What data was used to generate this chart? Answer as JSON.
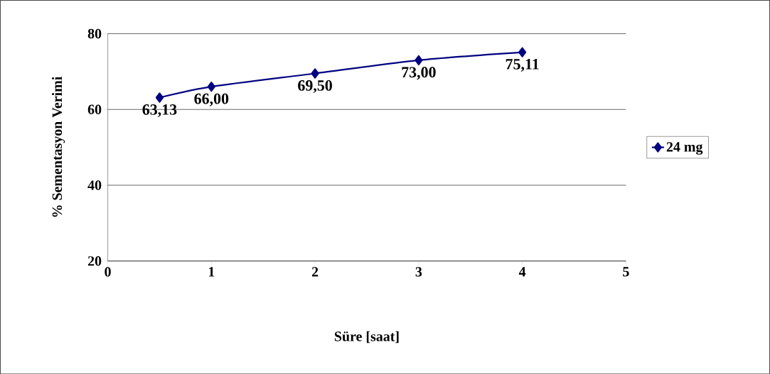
{
  "chart_data": {
    "type": "line",
    "xlabel": "Süre [saat]",
    "ylabel": "% Sementasyon Verimi",
    "x": [
      0.5,
      1,
      2,
      3,
      4
    ],
    "series": [
      {
        "name": "24 mg",
        "color": "#000080",
        "values": [
          63.13,
          66.0,
          69.5,
          73.0,
          75.11
        ],
        "value_labels": [
          "63,13",
          "66,00",
          "69,50",
          "73,00",
          "75,11"
        ]
      }
    ],
    "xlim": [
      0,
      5
    ],
    "ylim": [
      20,
      80
    ],
    "xticks": [
      0,
      1,
      2,
      3,
      4,
      5
    ],
    "yticks": [
      20,
      40,
      60,
      80
    ],
    "grid": "y",
    "legend": "right",
    "marker": "diamond",
    "line_style": "solid"
  }
}
